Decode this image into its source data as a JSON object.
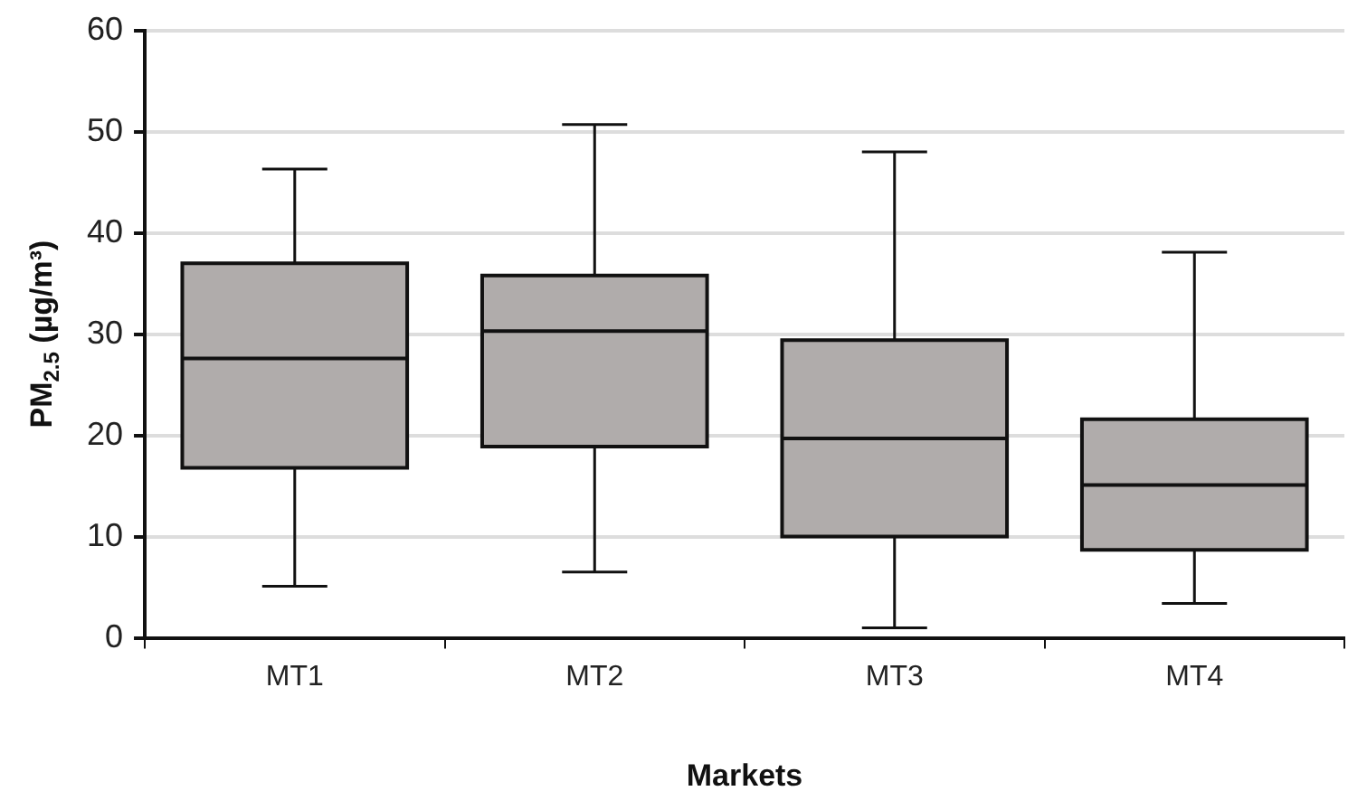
{
  "chart_data": {
    "type": "box",
    "xlabel": "Markets",
    "ylabel": "PM$_{2.5}$ (µg/m³)",
    "categories": [
      "MT1",
      "MT2",
      "MT3",
      "MT4"
    ],
    "boxes": [
      {
        "low": 5.1,
        "q1": 16.8,
        "median": 27.6,
        "q3": 37.0,
        "high": 46.3
      },
      {
        "low": 6.5,
        "q1": 18.9,
        "median": 30.3,
        "q3": 35.8,
        "high": 50.7
      },
      {
        "low": 1.0,
        "q1": 10.0,
        "median": 19.7,
        "q3": 29.4,
        "high": 48.0
      },
      {
        "low": 3.4,
        "q1": 8.7,
        "median": 15.1,
        "q3": 21.6,
        "high": 38.1
      }
    ],
    "color": "#b0acab",
    "ylim": [
      0,
      60
    ],
    "yticks": [
      0,
      10,
      20,
      30,
      40,
      50,
      60
    ],
    "grid": "y",
    "legend": false
  }
}
